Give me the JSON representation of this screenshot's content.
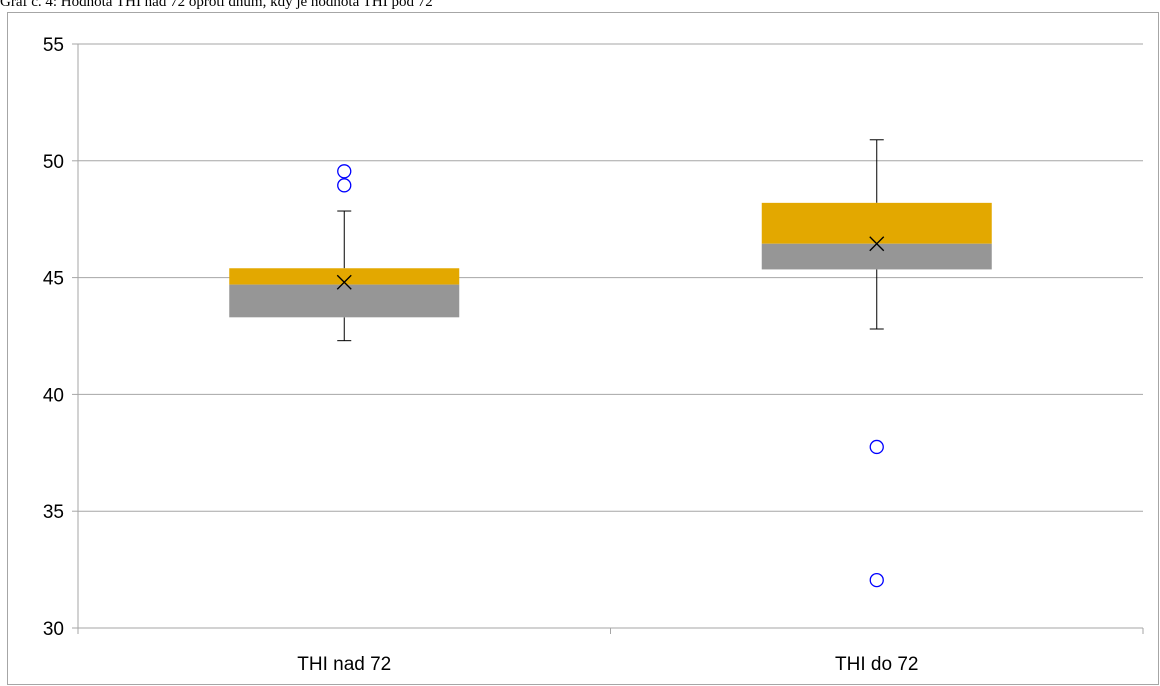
{
  "caption": "Graf č. 4: Hodnota THI nad 72 oproti dnům, kdy je hodnota THI pod 72",
  "chart_data": {
    "type": "boxplot",
    "title": "",
    "xlabel": "",
    "ylabel": "",
    "ylim": [
      30,
      55
    ],
    "yticks": [
      30,
      35,
      40,
      45,
      50,
      55
    ],
    "grid": true,
    "legend": "none",
    "colors": {
      "upper_box": "#e3a800",
      "lower_box": "#969696",
      "whisker": "#000000",
      "outlier": "#0000ff",
      "grid": "#a6a6a6"
    },
    "categories": [
      "THI nad 72",
      "THI do 72"
    ],
    "boxes": [
      {
        "category": "THI nad 72",
        "min": 42.3,
        "q1": 43.3,
        "median": 44.7,
        "q3": 45.4,
        "max": 47.85,
        "mean": 44.8,
        "outliers": [
          49.55,
          48.95
        ]
      },
      {
        "category": "THI do 72",
        "min": 42.8,
        "q1": 45.35,
        "median": 46.45,
        "q3": 48.2,
        "max": 50.9,
        "mean": 46.45,
        "outliers": [
          37.75,
          32.05
        ]
      }
    ]
  }
}
